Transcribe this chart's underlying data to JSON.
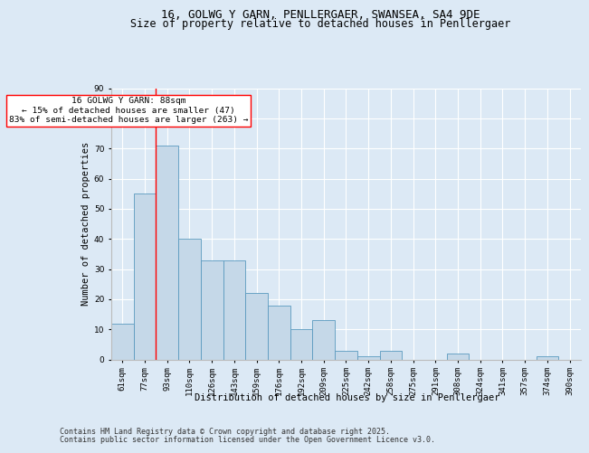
{
  "title_line1": "16, GOLWG Y GARN, PENLLERGAER, SWANSEA, SA4 9DE",
  "title_line2": "Size of property relative to detached houses in Penllergaer",
  "xlabel": "Distribution of detached houses by size in Penllergaer",
  "ylabel": "Number of detached properties",
  "categories": [
    "61sqm",
    "77sqm",
    "93sqm",
    "110sqm",
    "126sqm",
    "143sqm",
    "159sqm",
    "176sqm",
    "192sqm",
    "209sqm",
    "225sqm",
    "242sqm",
    "258sqm",
    "275sqm",
    "291sqm",
    "308sqm",
    "324sqm",
    "341sqm",
    "357sqm",
    "374sqm",
    "390sqm"
  ],
  "values": [
    12,
    55,
    71,
    40,
    33,
    33,
    22,
    18,
    10,
    13,
    3,
    1,
    3,
    0,
    0,
    2,
    0,
    0,
    0,
    1,
    0
  ],
  "bar_color": "#c5d8e8",
  "bar_edge_color": "#5a9abf",
  "bar_edge_width": 0.6,
  "red_line_index": 1.5,
  "annotation_text": "16 GOLWG Y GARN: 88sqm\n← 15% of detached houses are smaller (47)\n83% of semi-detached houses are larger (263) →",
  "annotation_box_color": "white",
  "annotation_box_edge_color": "red",
  "ylim": [
    0,
    90
  ],
  "yticks": [
    0,
    10,
    20,
    30,
    40,
    50,
    60,
    70,
    80,
    90
  ],
  "background_color": "#dce9f5",
  "plot_background_color": "#dce9f5",
  "footer_line1": "Contains HM Land Registry data © Crown copyright and database right 2025.",
  "footer_line2": "Contains public sector information licensed under the Open Government Licence v3.0.",
  "title_fontsize": 9,
  "subtitle_fontsize": 8.5,
  "axis_label_fontsize": 7.5,
  "tick_fontsize": 6.5,
  "annotation_fontsize": 6.8,
  "footer_fontsize": 6.0
}
